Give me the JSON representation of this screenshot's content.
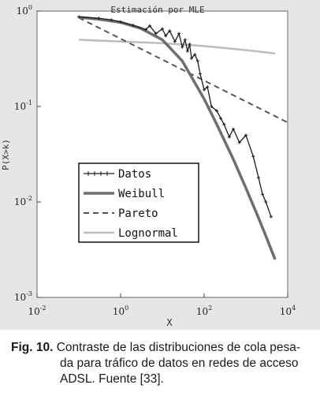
{
  "chart_data": {
    "type": "line",
    "title": "Estimación por MLE",
    "xlabel": "X",
    "ylabel": "P(X>k)",
    "xscale": "log",
    "yscale": "log",
    "xlim": [
      0.01,
      10000
    ],
    "ylim": [
      0.001,
      1
    ],
    "x_ticks": [
      {
        "base": "10",
        "exp": "-2"
      },
      {
        "base": "10",
        "exp": "0"
      },
      {
        "base": "10",
        "exp": "2"
      },
      {
        "base": "10",
        "exp": "4"
      }
    ],
    "y_ticks": [
      {
        "base": "10",
        "exp": "0"
      },
      {
        "base": "10",
        "exp": "-1"
      },
      {
        "base": "10",
        "exp": "-2"
      },
      {
        "base": "10",
        "exp": "-3"
      }
    ],
    "grid": false,
    "legend_position": "lower-left",
    "series": [
      {
        "name": "Datos",
        "style": "solid-marker",
        "color": "#1a1a1a",
        "x": [
          0.1,
          0.3,
          0.6,
          1,
          2,
          4,
          5,
          7,
          10,
          12,
          15,
          20,
          25,
          30,
          35,
          40,
          45,
          50,
          60,
          70,
          80,
          100,
          120,
          150,
          200,
          250,
          300,
          400,
          500,
          700,
          1000,
          1500,
          2000,
          2500,
          3000,
          4000
        ],
        "y": [
          0.87,
          0.84,
          0.81,
          0.77,
          0.71,
          0.64,
          0.7,
          0.58,
          0.65,
          0.55,
          0.62,
          0.48,
          0.58,
          0.42,
          0.5,
          0.38,
          0.45,
          0.32,
          0.35,
          0.3,
          0.22,
          0.15,
          0.16,
          0.1,
          0.09,
          0.075,
          0.065,
          0.048,
          0.058,
          0.042,
          0.05,
          0.03,
          0.018,
          0.012,
          0.01,
          0.007
        ]
      },
      {
        "name": "Pareto",
        "style": "dashed",
        "color": "#555555",
        "x": [
          0.1,
          10000
        ],
        "y": [
          0.85,
          0.068
        ]
      },
      {
        "name": "Weibull",
        "style": "solid-thick",
        "color": "#6e6e6e",
        "x": [
          0.1,
          0.3,
          1,
          3,
          10,
          30,
          100,
          200,
          500,
          1000,
          2000,
          3000,
          5000
        ],
        "y": [
          0.86,
          0.82,
          0.76,
          0.66,
          0.5,
          0.3,
          0.12,
          0.065,
          0.028,
          0.014,
          0.0068,
          0.0044,
          0.0025
        ]
      },
      {
        "name": "Lognormal",
        "style": "solid",
        "color": "#bdbdbd",
        "x": [
          0.1,
          1,
          10,
          100,
          1000,
          5000
        ],
        "y": [
          0.5,
          0.48,
          0.46,
          0.43,
          0.39,
          0.36
        ]
      }
    ]
  },
  "caption": {
    "label": "Fig. 10.",
    "line1": "Contraste de las distribuciones de cola pesa-",
    "line2": "da para tráfico de datos en redes de acceso",
    "line3": "ADSL. Fuente [33]."
  }
}
